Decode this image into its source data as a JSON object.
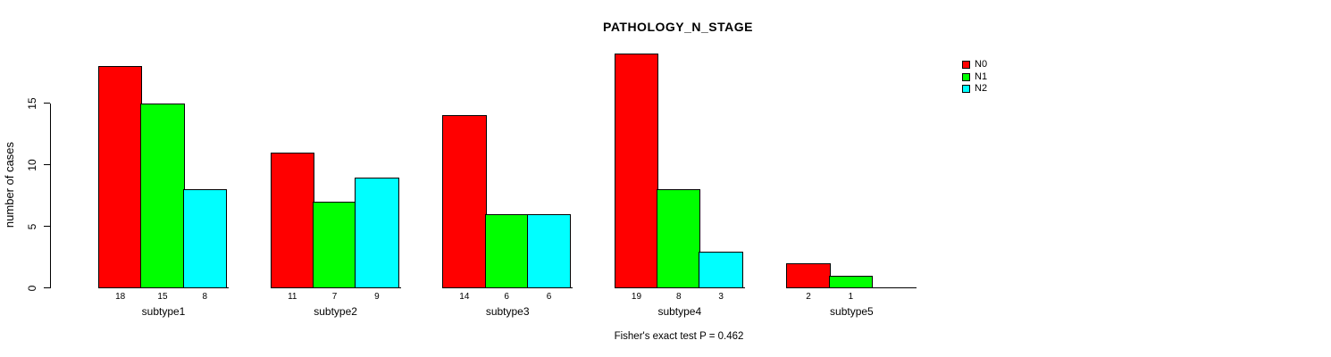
{
  "chart_data": {
    "type": "bar",
    "title": "PATHOLOGY_N_STAGE",
    "ylabel": "number of cases",
    "xlabel": "",
    "annotation": "Fisher's exact test P = 0.462",
    "categories": [
      "subtype1",
      "subtype2",
      "subtype3",
      "subtype4",
      "subtype5"
    ],
    "series": [
      {
        "name": "N0",
        "color": "#FF0000",
        "values": [
          18,
          11,
          14,
          19,
          2
        ]
      },
      {
        "name": "N1",
        "color": "#00FF00",
        "values": [
          15,
          7,
          6,
          8,
          1
        ]
      },
      {
        "name": "N2",
        "color": "#00FFFF",
        "values": [
          8,
          9,
          6,
          3,
          0
        ]
      }
    ],
    "yticks": [
      0,
      5,
      10,
      15
    ],
    "ylim": [
      0,
      19
    ],
    "bar_value_labels": true,
    "hide_zero_value_labels": true,
    "legend_position": "top-right",
    "grid": false,
    "background": "#FFFFFF",
    "axis_color": "#000000"
  }
}
